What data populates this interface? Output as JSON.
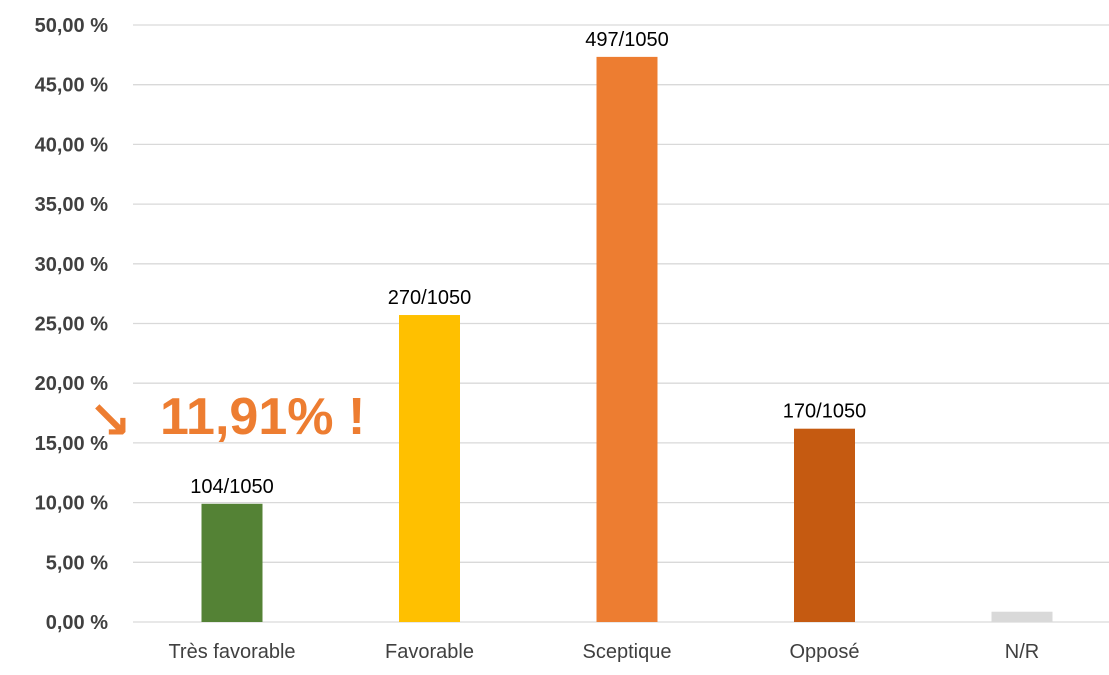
{
  "chart_data": {
    "type": "bar",
    "title": "",
    "xlabel": "",
    "ylabel": "",
    "categories": [
      "Très favorable",
      "Favorable",
      "Sceptique",
      "Opposé",
      "N/R"
    ],
    "values": [
      9.9,
      25.71,
      47.33,
      16.19,
      0.86
    ],
    "data_labels": [
      "104/1050",
      "270/1050",
      "497/1050",
      "170/1050",
      ""
    ],
    "colors": [
      "#548235",
      "#FFC000",
      "#ED7D31",
      "#C55A11",
      "#D9D9D9"
    ],
    "ylim": [
      0,
      50
    ],
    "yticks": [
      0,
      5,
      10,
      15,
      20,
      25,
      30,
      35,
      40,
      45,
      50
    ],
    "ytick_labels": [
      "0,00 %",
      "5,00 %",
      "10,00 %",
      "15,00 %",
      "20,00 %",
      "25,00 %",
      "30,00 %",
      "35,00 %",
      "40,00 %",
      "45,00 %",
      "50,00 %"
    ],
    "grid": true,
    "gridline_color": "#D9D9D9",
    "legend": "none",
    "annotation": {
      "arrow": "↘",
      "text": "11,91% !",
      "color": "#ED7D31"
    }
  }
}
